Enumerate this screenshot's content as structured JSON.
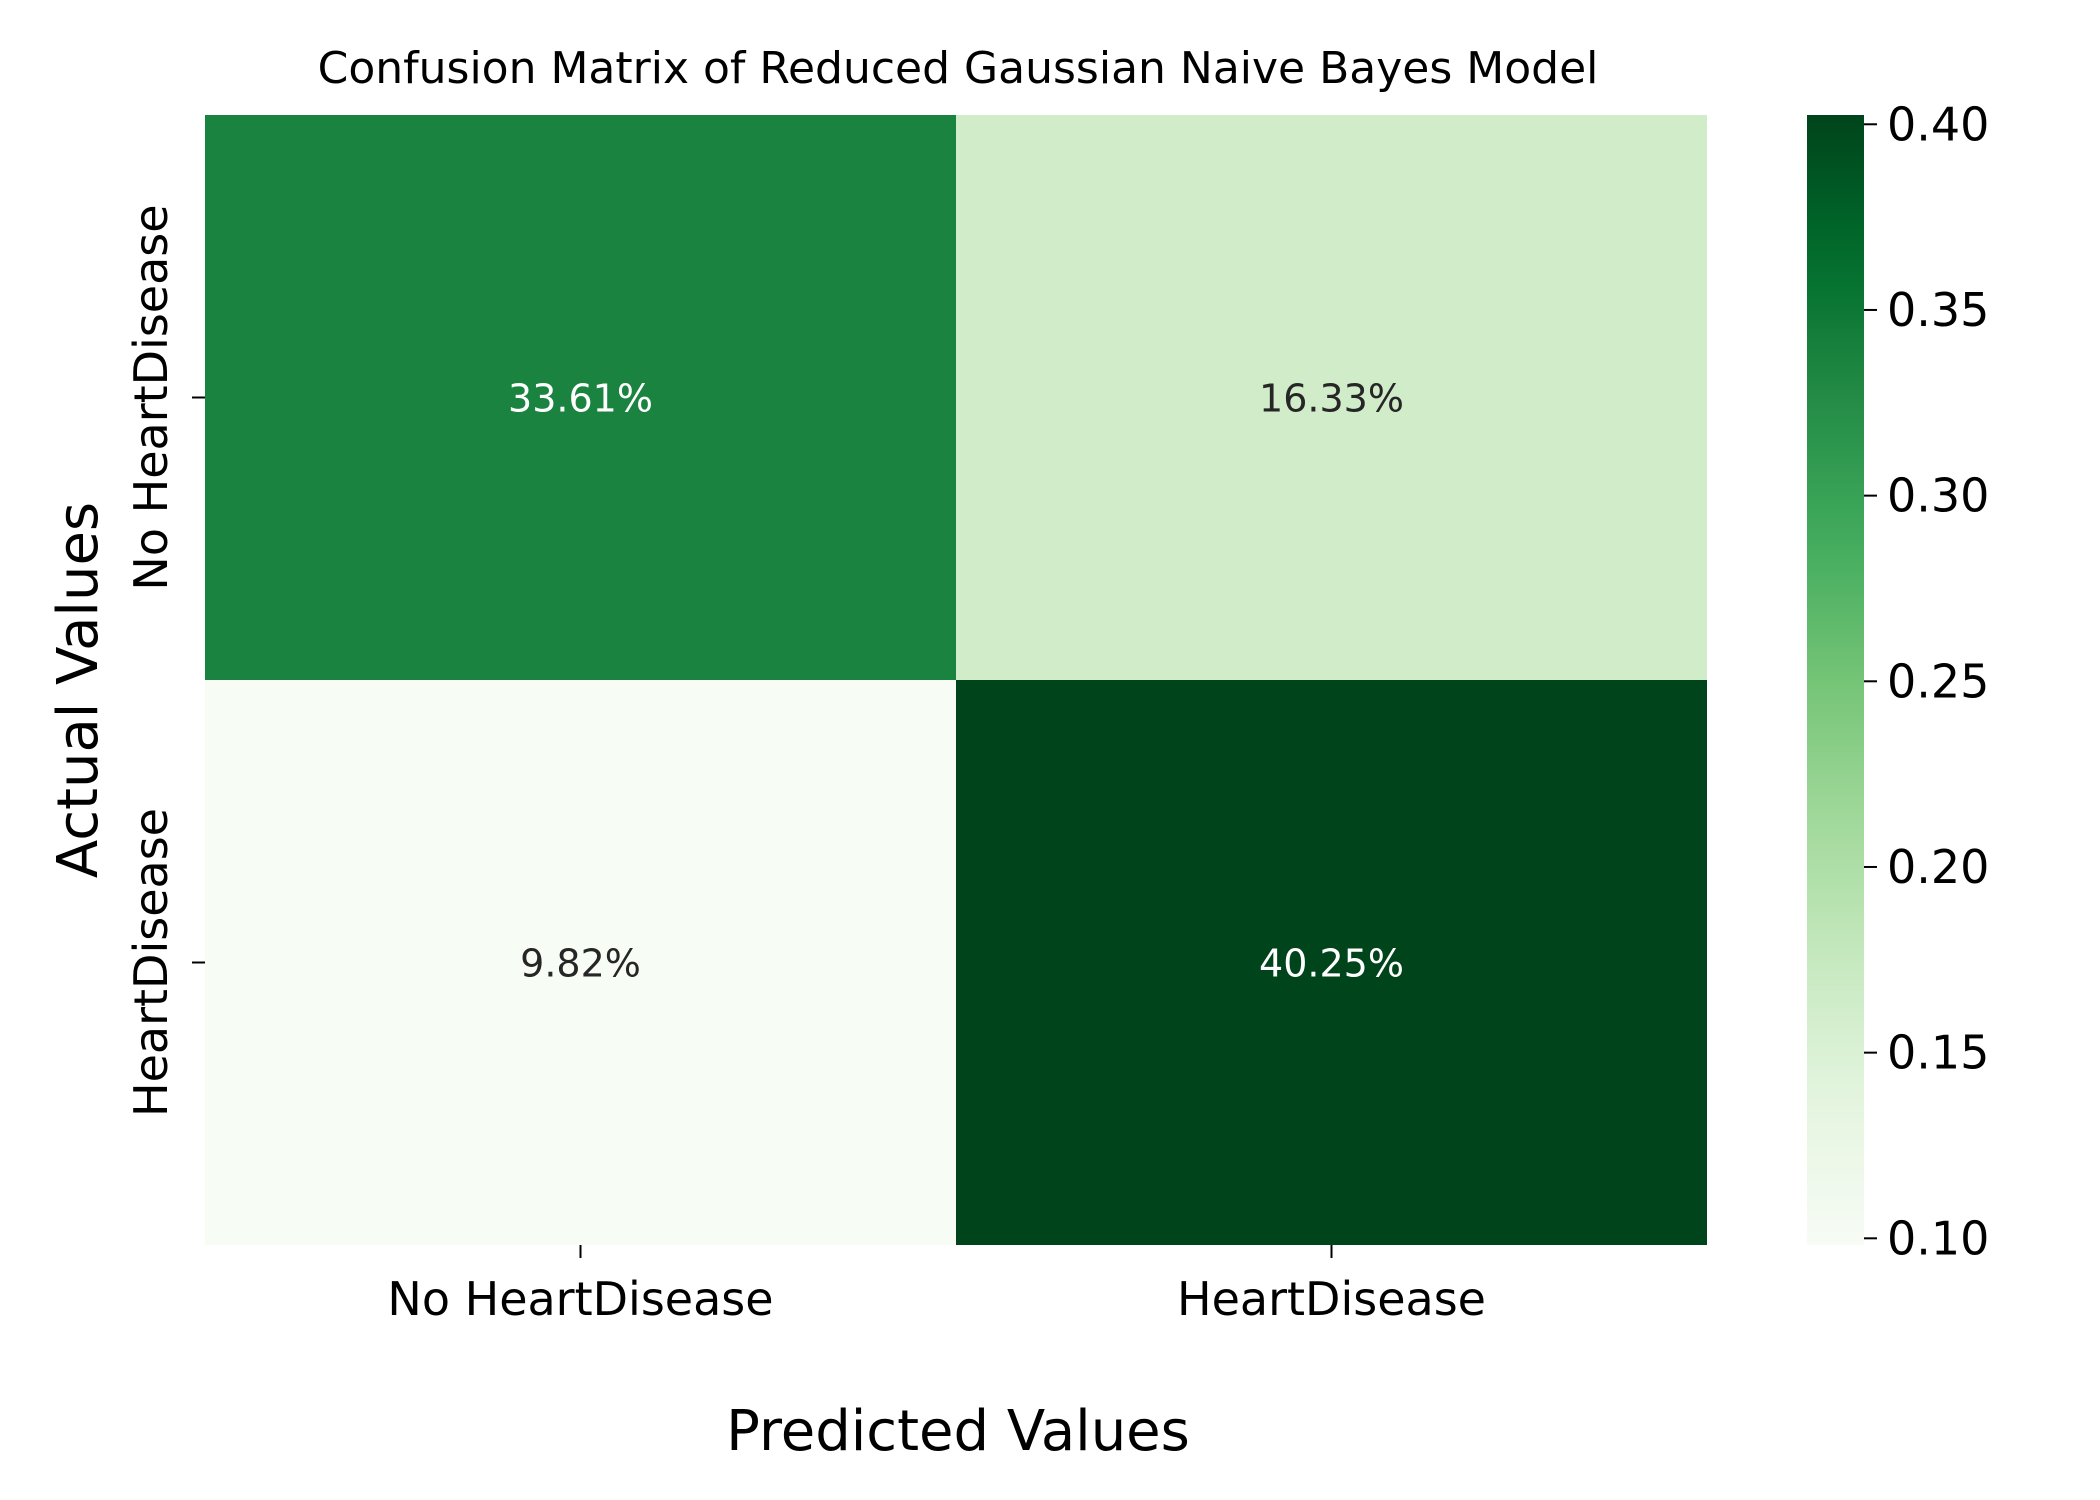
{
  "chart_data": {
    "type": "heatmap",
    "title": "Confusion Matrix of Reduced Gaussian Naive Bayes Model",
    "xlabel": "Predicted Values",
    "ylabel": "Actual Values",
    "x_categories": [
      "No HeartDisease",
      "HeartDisease"
    ],
    "y_categories": [
      "No HeartDisease",
      "HeartDisease"
    ],
    "values": [
      [
        0.3361,
        0.1633
      ],
      [
        0.0982,
        0.4025
      ]
    ],
    "annotations": [
      [
        "33.61%",
        "16.33%"
      ],
      [
        "9.82%",
        "40.25%"
      ]
    ],
    "colormap": "Greens",
    "colorbar": {
      "range": [
        0.0982,
        0.4025
      ],
      "ticks": [
        0.1,
        0.15,
        0.2,
        0.25,
        0.3,
        0.35,
        0.4
      ],
      "tick_labels": [
        "0.10",
        "0.15",
        "0.20",
        "0.25",
        "0.30",
        "0.35",
        "0.40"
      ]
    },
    "colors": {
      "low": "#f7fcf5",
      "high": "#00441b",
      "text_dark": "#262626",
      "text_light": "#ffffff"
    }
  }
}
